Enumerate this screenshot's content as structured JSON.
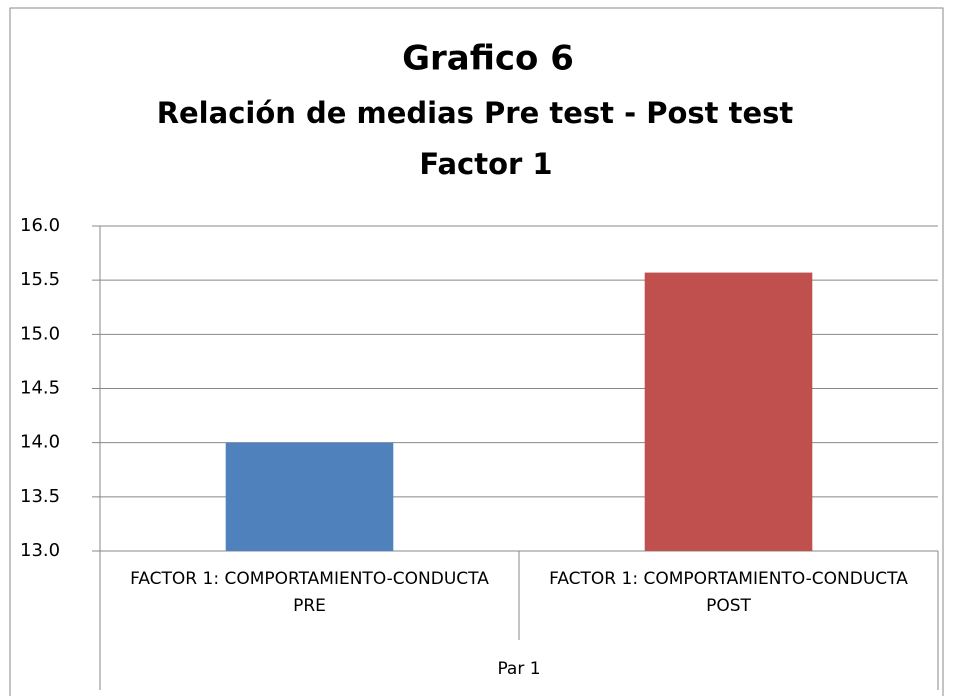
{
  "chart_data": {
    "type": "bar",
    "title": [
      "Grafico 6",
      "Relación de medias Pre test - Post test",
      "Factor 1"
    ],
    "categories": [
      "FACTOR 1: COMPORTAMIENTO-CONDUCTA PRE",
      "FACTOR 1: COMPORTAMIENTO-CONDUCTA POST"
    ],
    "group_label": "Par 1",
    "values": [
      14.0,
      15.57
    ],
    "colors": [
      "#4f81bd",
      "#c0504d"
    ],
    "ylim": [
      13,
      16
    ],
    "yticks": [
      {
        "value": 13,
        "label": "13.0"
      },
      {
        "value": 13.5,
        "label": "13.5"
      },
      {
        "value": 14,
        "label": "14.0"
      },
      {
        "value": 14.5,
        "label": "14.5"
      },
      {
        "value": 15,
        "label": "15.0"
      },
      {
        "value": 15.5,
        "label": "15.5"
      },
      {
        "value": 16,
        "label": "16.0"
      }
    ],
    "grid": true
  }
}
